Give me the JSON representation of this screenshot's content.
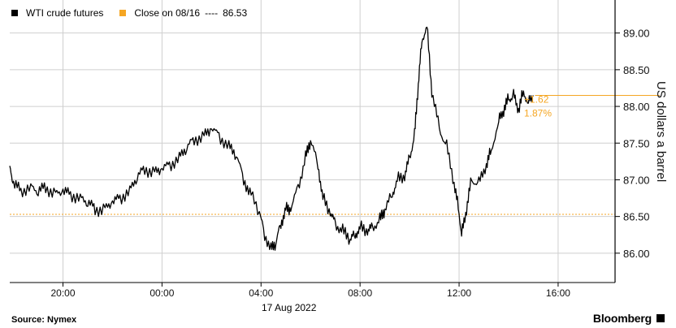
{
  "legend": {
    "series_label": "WTI crude futures",
    "close_label": "Close on 08/16",
    "close_value": "86.53"
  },
  "axes": {
    "y_label": "US dollars a barrel",
    "date_label": "17 Aug 2022"
  },
  "footer": {
    "source": "Source: Nymex",
    "brand": "Bloomberg"
  },
  "annotations": {
    "change_abs": "+1.62",
    "change_pct": "1.87%"
  },
  "colors": {
    "series": "#000000",
    "close": "#f5a623",
    "grid": "#cfcfcf"
  },
  "chart_data": {
    "type": "line",
    "title": "",
    "xlabel": "",
    "ylabel": "US dollars a barrel",
    "x_ticks": [
      "20:00",
      "00:00",
      "04:00",
      "08:00",
      "12:00",
      "16:00"
    ],
    "x_range_hours": [
      17.85,
      42.3
    ],
    "y_ticks": [
      "86.00",
      "86.50",
      "87.00",
      "87.50",
      "88.00",
      "88.50",
      "89.00"
    ],
    "ylim": [
      85.6,
      89.45
    ],
    "grid": true,
    "legend_position": "top-left",
    "reference_line": {
      "label": "Close on 08/16",
      "value": 86.53
    },
    "series": [
      {
        "name": "WTI crude futures",
        "x_hours": [
          17.85,
          18.0,
          18.3,
          18.7,
          19.0,
          19.3,
          19.7,
          20.0,
          20.3,
          20.7,
          21.0,
          21.3,
          21.7,
          22.0,
          22.3,
          22.7,
          23.0,
          23.3,
          23.7,
          24.0,
          24.3,
          24.7,
          25.0,
          25.3,
          25.7,
          26.0,
          26.3,
          26.7,
          27.0,
          27.3,
          27.6,
          28.0,
          28.1,
          28.4,
          28.6,
          28.8,
          29.0,
          29.2,
          29.5,
          29.8,
          30.0,
          30.3,
          30.5,
          30.8,
          31.0,
          31.3,
          31.6,
          31.8,
          32.0,
          32.3,
          32.5,
          32.8,
          33.0,
          33.3,
          33.5,
          33.8,
          34.0,
          34.2,
          34.35,
          34.5,
          34.7,
          34.9,
          35.2,
          35.5,
          35.8,
          36.0,
          36.1,
          36.3,
          36.5,
          36.8,
          37.1,
          37.3,
          37.6,
          37.8,
          38.0,
          38.2,
          38.4,
          38.6,
          38.8,
          39.0
        ],
        "values": [
          87.15,
          86.95,
          86.85,
          86.9,
          86.85,
          86.9,
          86.8,
          86.85,
          86.8,
          86.75,
          86.7,
          86.6,
          86.6,
          86.7,
          86.75,
          86.85,
          87.05,
          87.15,
          87.1,
          87.15,
          87.2,
          87.3,
          87.45,
          87.55,
          87.6,
          87.7,
          87.6,
          87.45,
          87.35,
          87.0,
          86.8,
          86.5,
          86.3,
          86.05,
          86.15,
          86.4,
          86.6,
          86.6,
          86.9,
          87.3,
          87.55,
          87.2,
          86.75,
          86.55,
          86.4,
          86.3,
          86.2,
          86.25,
          86.35,
          86.3,
          86.35,
          86.45,
          86.6,
          86.8,
          87.0,
          87.05,
          87.3,
          87.6,
          88.3,
          88.9,
          89.1,
          88.2,
          87.7,
          87.45,
          86.95,
          86.55,
          86.25,
          86.6,
          87.0,
          86.95,
          87.2,
          87.4,
          87.8,
          87.95,
          88.1,
          88.15,
          87.95,
          88.2,
          88.05,
          88.15
        ]
      }
    ]
  }
}
